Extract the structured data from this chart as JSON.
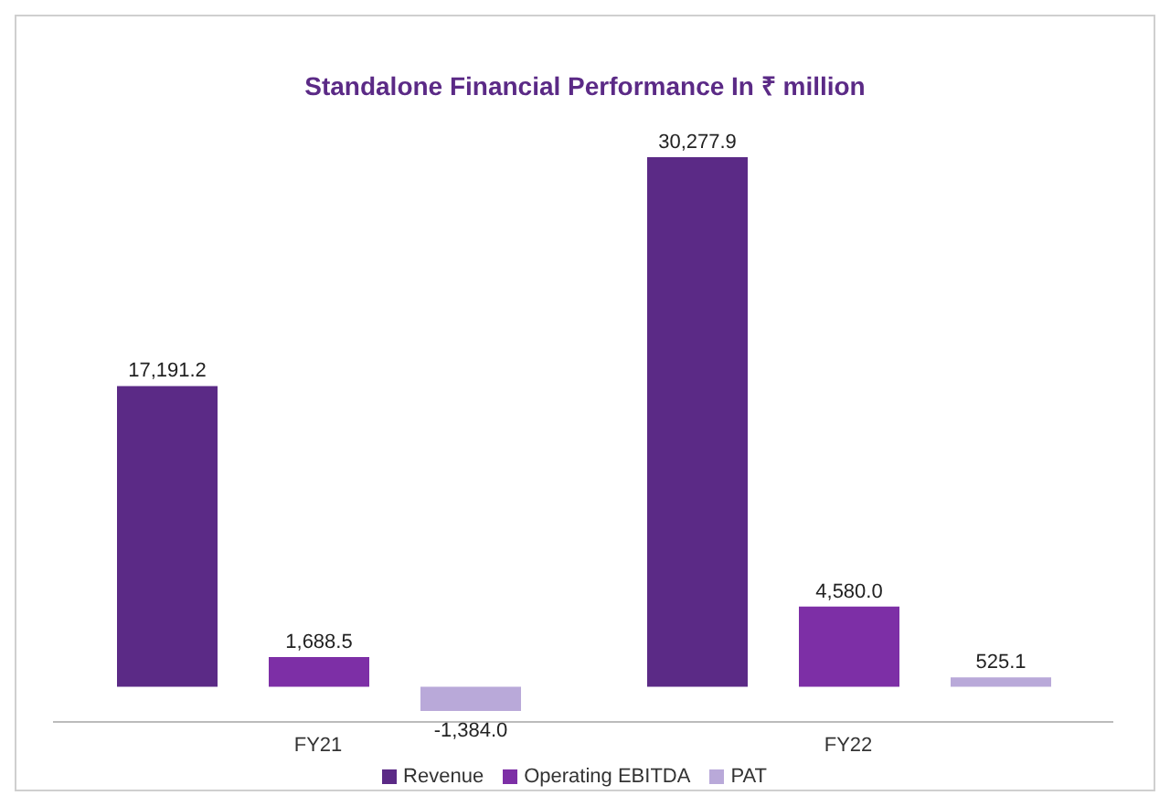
{
  "chart_data": {
    "type": "bar",
    "title": "Standalone Financial Performance In ₹ million",
    "categories": [
      "FY21",
      "FY22"
    ],
    "series": [
      {
        "name": "Revenue",
        "color": "#5b2a86",
        "values": [
          17191.2,
          30277.9
        ],
        "value_labels": [
          "17,191.2",
          "30,277.9"
        ]
      },
      {
        "name": "Operating EBITDA",
        "color": "#7d2fa6",
        "values": [
          1688.5,
          4580.0
        ],
        "value_labels": [
          "1,688.5",
          "4,580.0"
        ]
      },
      {
        "name": "PAT",
        "color": "#b9a9d9",
        "values": [
          -1384.0,
          525.1
        ],
        "value_labels": [
          "-1,384.0",
          "525.1"
        ]
      }
    ],
    "legend": "bottom"
  }
}
